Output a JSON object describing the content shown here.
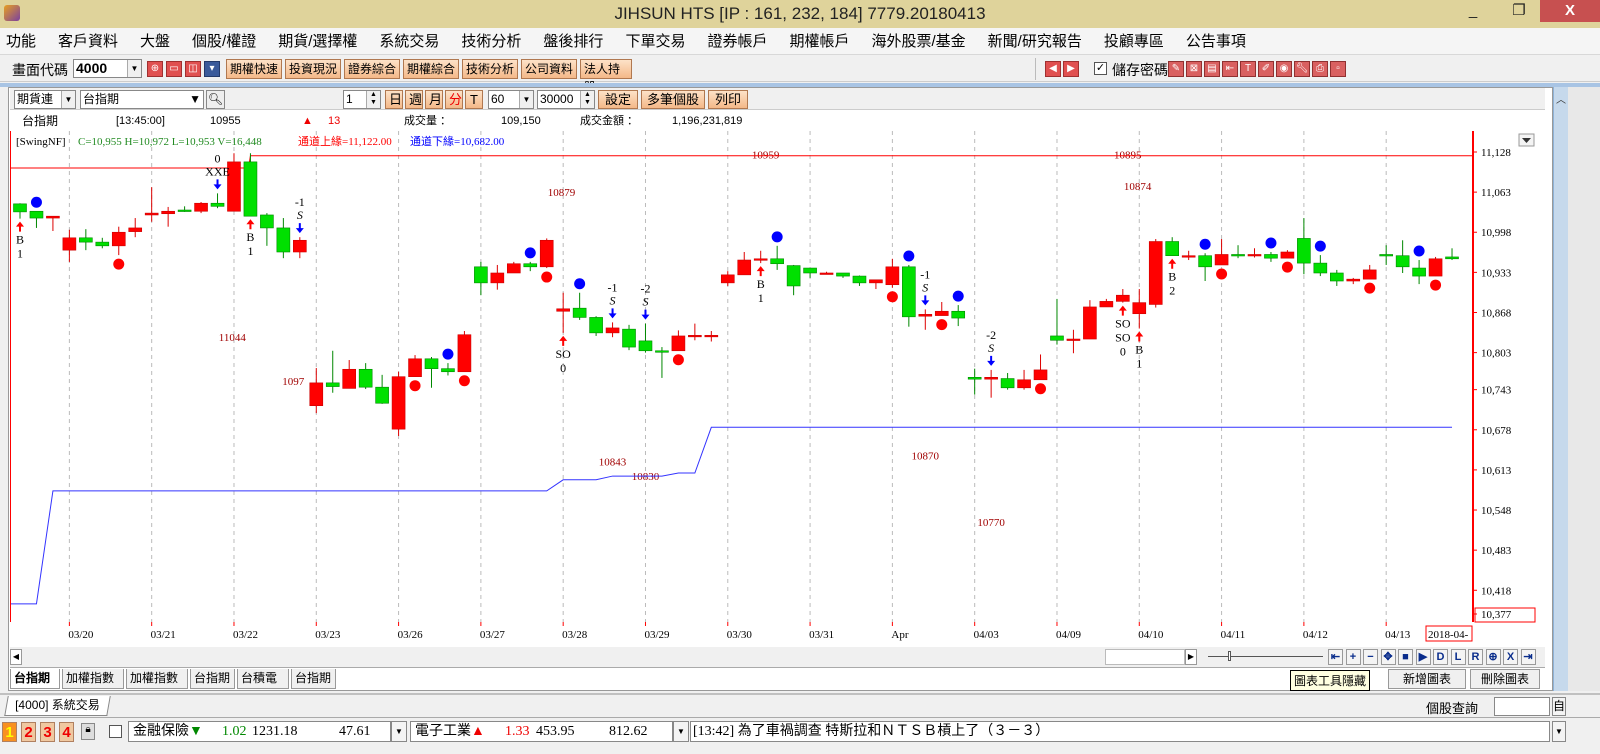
{
  "window": {
    "title": "JIHSUN HTS     [IP : 161, 232, 184] 7779.20180413",
    "minimize": "_",
    "maximize": "❐",
    "close": "X"
  },
  "menu": [
    "功能",
    "客戶資料",
    "大盤",
    "個股/權證",
    "期貨/選擇權",
    "系統交易",
    "技術分析",
    "盤後排行",
    "下單交易",
    "證券帳戶",
    "期權帳戶",
    "海外股票/基金",
    "新聞/研究報告",
    "投顧專區",
    "公告事項"
  ],
  "toolbar": {
    "code_label": "畫面代碼",
    "code_value": "4000",
    "buttons": [
      "期權快速",
      "投資現況",
      "證券綜合",
      "期權綜合",
      "技術分析",
      "公司資料",
      "法人持股"
    ],
    "save_password_label": "儲存密碼",
    "save_password_checked": true,
    "left_icons": [
      "search-icon",
      "folder-icon",
      "chart-icon",
      "dropdown-icon"
    ],
    "right_icons": [
      "pen-icon",
      "close-box-icon",
      "save-icon",
      "export-icon",
      "text-icon",
      "edit-icon",
      "palette-icon",
      "wrench-icon",
      "print-icon",
      "layout-icon"
    ]
  },
  "chart_toolbar": {
    "market": "期貨連",
    "symbol": "台指期",
    "count": "1",
    "periods": [
      "日",
      "週",
      "月",
      "分",
      "T"
    ],
    "active_period": "分",
    "interval": "60",
    "bars": "30000",
    "buttons": [
      "設定",
      "多筆個股",
      "列印"
    ]
  },
  "quote": {
    "name": "台指期",
    "time": "[13:45:00]",
    "price": "10955",
    "change_arrow": "▲",
    "change": "13",
    "volume_label": "成交量 ：",
    "volume": "109,150",
    "amount_label": "成交金額 ：",
    "amount": "1,196,231,819"
  },
  "chart_data": {
    "type": "candlestick",
    "indicator": "[SwingNF]",
    "legend_ohlc": "C=10,955 H=10,972 L=10,953 V=16,448",
    "legend_upper": "通道上緣=11,122.00",
    "legend_lower": "通道下緣=10,682.00",
    "colors": {
      "up": "#ff0000",
      "down": "#00e000",
      "upper": "#ff0000",
      "lower": "#3333ff",
      "annotation": "#a00000"
    },
    "ylim": [
      10367,
      11143
    ],
    "y_ticks": [
      "11,128",
      "11,063",
      "10,998",
      "10,933",
      "10,868",
      "10,803",
      "10,743",
      "10,678",
      "10,613",
      "10,548",
      "10,483",
      "10,418",
      "10,377"
    ],
    "y_tick_values": [
      11128,
      11063,
      10998,
      10933,
      10868,
      10803,
      10743,
      10678,
      10613,
      10548,
      10483,
      10418,
      10377
    ],
    "x_labels": [
      "03/20",
      "03/21",
      "03/22",
      "03/23",
      "03/26",
      "03/27",
      "03/28",
      "03/29",
      "03/30",
      "03/31",
      "Apr",
      "04/03",
      "04/09",
      "04/10",
      "04/11",
      "04/12",
      "04/13"
    ],
    "x_cursor_label": "2018-04-",
    "ohlc": [
      [
        11044,
        11045,
        11020,
        11031
      ],
      [
        11032,
        11032,
        11005,
        11021
      ],
      [
        11021,
        11024,
        11000,
        11024
      ],
      [
        10969,
        11002,
        10950,
        10989
      ],
      [
        10989,
        11003,
        10969,
        10982
      ],
      [
        10982,
        10989,
        10972,
        10976
      ],
      [
        10976,
        11007,
        10961,
        10998
      ],
      [
        10999,
        11021,
        10990,
        11005
      ],
      [
        11026,
        11071,
        11015,
        11029
      ],
      [
        11028,
        11039,
        11007,
        11032
      ],
      [
        11034,
        11040,
        11031,
        11032
      ],
      [
        11032,
        11047,
        11029,
        11045
      ],
      [
        11045,
        11061,
        11037,
        11040
      ],
      [
        11032,
        11126,
        11032,
        11112
      ],
      [
        11112,
        11126,
        11024,
        11024
      ],
      [
        11026,
        11029,
        10976,
        11005
      ],
      [
        11005,
        11021,
        10956,
        10966
      ],
      [
        10966,
        10990,
        10956,
        10985
      ],
      [
        10717,
        10778,
        10705,
        10754
      ],
      [
        10754,
        10806,
        10738,
        10748
      ],
      [
        10745,
        10791,
        10745,
        10776
      ],
      [
        10776,
        10786,
        10744,
        10747
      ],
      [
        10747,
        10767,
        10720,
        10721
      ],
      [
        10679,
        10772,
        10668,
        10764
      ],
      [
        10764,
        10799,
        10764,
        10793
      ],
      [
        10793,
        10796,
        10746,
        10777
      ],
      [
        10777,
        10786,
        10766,
        10772
      ],
      [
        10772,
        10838,
        10772,
        10832
      ],
      [
        10942,
        10950,
        10896,
        10916
      ],
      [
        10916,
        10945,
        10905,
        10932
      ],
      [
        10932,
        10950,
        10932,
        10947
      ],
      [
        10947,
        10950,
        10935,
        10942
      ],
      [
        10942,
        10988,
        10940,
        10985
      ],
      [
        10870,
        10900,
        10835,
        10874
      ],
      [
        10875,
        10900,
        10856,
        10860
      ],
      [
        10860,
        10862,
        10830,
        10835
      ],
      [
        10835,
        10852,
        10828,
        10843
      ],
      [
        10841,
        10848,
        10807,
        10812
      ],
      [
        10822,
        10850,
        10803,
        10806
      ],
      [
        10806,
        10812,
        10762,
        10804
      ],
      [
        10806,
        10839,
        10806,
        10830
      ],
      [
        10830,
        10850,
        10823,
        10831
      ],
      [
        10830,
        10838,
        10821,
        10831
      ],
      [
        10916,
        10935,
        10911,
        10929
      ],
      [
        10929,
        10966,
        10929,
        10953
      ],
      [
        10953,
        10968,
        10948,
        10955
      ],
      [
        10955,
        10976,
        10937,
        10947
      ],
      [
        10944,
        10945,
        10896,
        10911
      ],
      [
        10940,
        10940,
        10924,
        10932
      ],
      [
        10930,
        10934,
        10930,
        10932
      ],
      [
        10932,
        10932,
        10924,
        10927
      ],
      [
        10927,
        10928,
        10911,
        10916
      ],
      [
        10916,
        10921,
        10906,
        10921
      ],
      [
        10913,
        10955,
        10908,
        10942
      ],
      [
        10942,
        10945,
        10845,
        10861
      ],
      [
        10862,
        10873,
        10840,
        10865
      ],
      [
        10863,
        10885,
        10863,
        10870
      ],
      [
        10870,
        10880,
        10846,
        10859
      ],
      [
        10763,
        10777,
        10735,
        10760
      ],
      [
        10760,
        10775,
        10730,
        10763
      ],
      [
        10761,
        10770,
        10743,
        10746
      ],
      [
        10746,
        10775,
        10743,
        10759
      ],
      [
        10759,
        10800,
        10759,
        10775
      ],
      [
        10830,
        10890,
        10816,
        10823
      ],
      [
        10825,
        10840,
        10802,
        10825
      ],
      [
        10825,
        10888,
        10825,
        10877
      ],
      [
        10877,
        10890,
        10877,
        10886
      ],
      [
        10886,
        10906,
        10884,
        10896
      ],
      [
        10866,
        10906,
        10842,
        10884
      ],
      [
        10881,
        10987,
        10876,
        10983
      ],
      [
        10983,
        10990,
        10960,
        10960
      ],
      [
        10958,
        10968,
        10953,
        10960
      ],
      [
        10960,
        10964,
        10919,
        10942
      ],
      [
        10945,
        10987,
        10945,
        10962
      ],
      [
        10962,
        10977,
        10956,
        10961
      ],
      [
        10961,
        10972,
        10957,
        10962
      ],
      [
        10962,
        10966,
        10950,
        10956
      ],
      [
        10956,
        10969,
        10956,
        10966
      ],
      [
        10988,
        11021,
        10930,
        10948
      ],
      [
        10948,
        10961,
        10927,
        10932
      ],
      [
        10932,
        10937,
        10911,
        10919
      ],
      [
        10919,
        10924,
        10914,
        10922
      ],
      [
        10922,
        10945,
        10922,
        10937
      ],
      [
        10962,
        10977,
        10945,
        10961
      ],
      [
        10960,
        10985,
        10932,
        10942
      ],
      [
        10940,
        10953,
        10914,
        10927
      ],
      [
        10927,
        10958,
        10927,
        10955
      ],
      [
        10958,
        10972,
        10953,
        10955
      ]
    ],
    "upper_channel_steps": [
      [
        0,
        11102
      ],
      [
        14,
        11122
      ]
    ],
    "lower_channel_steps": [
      [
        0,
        10396
      ],
      [
        1,
        10396
      ],
      [
        2,
        10579
      ],
      [
        33,
        10597
      ],
      [
        36,
        10603
      ],
      [
        40,
        10608
      ],
      [
        42,
        10682
      ]
    ],
    "blue_dots": [
      1,
      26,
      31,
      34,
      46,
      54,
      57,
      72,
      76,
      79,
      85
    ],
    "red_dots": [
      6,
      24,
      27,
      32,
      40,
      53,
      56,
      62,
      73,
      77,
      82,
      86
    ],
    "signals": [
      {
        "idx": 0,
        "pos": "below",
        "lines": [
          "B",
          "1"
        ]
      },
      {
        "idx": 12,
        "pos": "above",
        "lines": [
          "0",
          "XXE"
        ]
      },
      {
        "idx": 14,
        "pos": "below",
        "lines": [
          "B",
          "1"
        ]
      },
      {
        "idx": 17,
        "pos": "above",
        "lines": [
          "-1",
          "S"
        ]
      },
      {
        "idx": 33,
        "pos": "below",
        "lines": [
          "SO",
          "0"
        ]
      },
      {
        "idx": 36,
        "pos": "above",
        "lines": [
          "-1",
          "S"
        ]
      },
      {
        "idx": 38,
        "pos": "above",
        "lines": [
          "-2",
          "S"
        ]
      },
      {
        "idx": 45,
        "pos": "below",
        "lines": [
          "B",
          "1"
        ]
      },
      {
        "idx": 55,
        "pos": "above",
        "lines": [
          "-1",
          "S"
        ]
      },
      {
        "idx": 59,
        "pos": "above",
        "lines": [
          "-2",
          "S"
        ]
      },
      {
        "idx": 67,
        "pos": "below",
        "lines": [
          "SO",
          "SO",
          "0"
        ]
      },
      {
        "idx": 68,
        "pos": "below",
        "lines": [
          "B",
          "1"
        ]
      },
      {
        "idx": 70,
        "pos": "below",
        "lines": [
          "B",
          "2"
        ]
      }
    ],
    "annotations": [
      {
        "text": "10959",
        "idx": 45.3,
        "price": 11124
      },
      {
        "text": "10895",
        "idx": 67.3,
        "price": 11124
      },
      {
        "text": "10879",
        "idx": 32.9,
        "price": 11063
      },
      {
        "text": "10874",
        "idx": 67.9,
        "price": 11073
      },
      {
        "text": "11044",
        "idx": 12.9,
        "price": 10828
      },
      {
        "text": "1097",
        "idx": 16.6,
        "price": 10757
      },
      {
        "text": "10843",
        "idx": 36,
        "price": 10627
      },
      {
        "text": "10830",
        "idx": 38,
        "price": 10603
      },
      {
        "text": "10870",
        "idx": 55,
        "price": 10636
      },
      {
        "text": "10770",
        "idx": 59,
        "price": 10529
      }
    ]
  },
  "nav_buttons": [
    "⇤",
    "+",
    "−",
    "✥",
    "■",
    "▶",
    "D",
    "L",
    "R",
    "⊕",
    "X",
    "⇥"
  ],
  "chart_tabs": [
    "台指期",
    "加權指數",
    "加權指數",
    "台指期",
    "台積電",
    "台指期"
  ],
  "chart_actions": {
    "add": "新增圖表",
    "delete": "刪除圖表",
    "tooltip": "圖表工具隱藏"
  },
  "bottom_tab": "[4000]  系統交易",
  "stock_query_label": "個股查詢",
  "status": {
    "pages": [
      "1",
      "2",
      "3",
      "4"
    ],
    "ticker1": {
      "name": "金融保險",
      "arrow": "▼",
      "change": "1.02",
      "index": "1231.18",
      "volume": "47.61"
    },
    "ticker2": {
      "name": "電子工業",
      "arrow": "▲",
      "change": "1.33",
      "index": "453.95",
      "volume": "812.62"
    },
    "news": "[13:42] 為了車禍調查 特斯拉和ＮＴＳＢ槓上了（３－３）",
    "news_end_button": "自"
  }
}
